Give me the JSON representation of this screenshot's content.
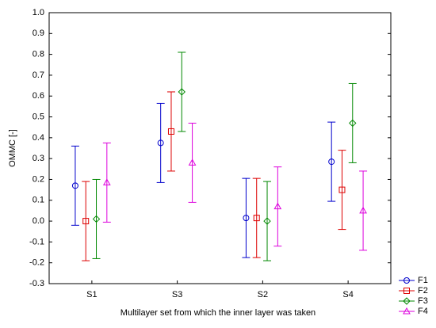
{
  "chart_data": {
    "type": "errorbar",
    "x_label": "Multilayer set from which the inner layer was taken",
    "y_label": "OMMC   [-]",
    "categories": [
      "S1",
      "S3",
      "S2",
      "S4"
    ],
    "ylim": [
      -0.3,
      1.0
    ],
    "yticks": [
      -0.3,
      -0.2,
      -0.1,
      {
        "value": 0,
        "label": "0.0"
      },
      0.1,
      0.2,
      0.3,
      0.4,
      0.5,
      0.6,
      0.7,
      0.8,
      0.9,
      {
        "value": 1,
        "label": "1.0"
      }
    ],
    "legend": "lower right",
    "series": [
      {
        "name": "F1",
        "color": "#0000cc",
        "marker": "circle",
        "values": [
          0.17,
          0.375,
          0.015,
          0.285
        ],
        "errors": [
          0.19,
          0.19,
          0.19,
          0.19
        ]
      },
      {
        "name": "F2",
        "color": "#dd0000",
        "marker": "square",
        "values": [
          0.0,
          0.43,
          0.015,
          0.15
        ],
        "errors": [
          0.19,
          0.19,
          0.19,
          0.19
        ]
      },
      {
        "name": "F3",
        "color": "#008800",
        "marker": "diamond",
        "values": [
          0.01,
          0.62,
          0.0,
          0.47
        ],
        "errors": [
          0.19,
          0.19,
          0.19,
          0.19
        ]
      },
      {
        "name": "F4",
        "color": "#dd00dd",
        "marker": "triangle",
        "values": [
          0.185,
          0.28,
          0.07,
          0.05
        ],
        "errors": [
          0.19,
          0.19,
          0.19,
          0.19
        ]
      }
    ]
  }
}
